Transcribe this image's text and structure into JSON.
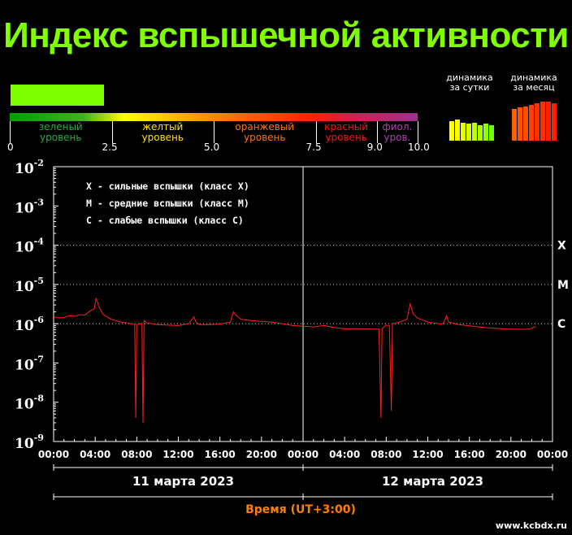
{
  "title": "Индекс вспышечной активности",
  "colors": {
    "title": "#80ff00",
    "indicator": "#80ff00",
    "curve": "#ff2020",
    "time_label": "#ff8000"
  },
  "scale": {
    "levels": [
      {
        "label": "зеленый\nуровень",
        "color": "#20b040"
      },
      {
        "label": "желтый\nуровень",
        "color": "#ffe000"
      },
      {
        "label": "оранжевый\nуровень",
        "color": "#ff7010"
      },
      {
        "label": "красный\nуровень",
        "color": "#ff1010"
      },
      {
        "label": "фиол.\nуров.",
        "color": "#b040b0"
      }
    ],
    "ticks": [
      "0",
      "2.5",
      "5.0",
      "7.5",
      "9.0",
      "10.0"
    ],
    "current_index": 2.3
  },
  "dynamics": {
    "day_label": "динамика\nза сутки",
    "month_label": "динамика\nза месяц",
    "day_colors": [
      "#ffff00",
      "#ffff00",
      "#e8ff00",
      "#d0ff00",
      "#c0ff00",
      "#a8ff00",
      "#90ff00",
      "#70ff00"
    ],
    "day_levels": [
      0.75,
      0.8,
      0.7,
      0.65,
      0.7,
      0.6,
      0.65,
      0.6
    ],
    "month_colors": [
      "#ff6000",
      "#ff5000",
      "#ff5000",
      "#ff4000",
      "#ff3000",
      "#ff3000",
      "#ff2000",
      "#ff2000"
    ],
    "month_levels": [
      0.82,
      0.86,
      0.88,
      0.92,
      0.96,
      1.0,
      1.0,
      0.95
    ]
  },
  "legend": [
    "X - сильные вспышки (класс X)",
    "M - средние вспышки (класс M)",
    "C - слабые вспышки (класс C)"
  ],
  "class_labels": [
    "X",
    "M",
    "C"
  ],
  "chart_data": {
    "type": "line",
    "y_scale": "log",
    "ylim": [
      1e-09,
      0.01
    ],
    "y_ticks": [
      {
        "base": "10",
        "exp": "-2"
      },
      {
        "base": "10",
        "exp": "-3"
      },
      {
        "base": "10",
        "exp": "-4"
      },
      {
        "base": "10",
        "exp": "-5"
      },
      {
        "base": "10",
        "exp": "-6"
      },
      {
        "base": "10",
        "exp": "-7"
      },
      {
        "base": "10",
        "exp": "-8"
      },
      {
        "base": "10",
        "exp": "-9"
      }
    ],
    "x_ticks": [
      "00:00",
      "04:00",
      "08:00",
      "12:00",
      "16:00",
      "20:00",
      "00:00",
      "04:00",
      "08:00",
      "12:00",
      "16:00",
      "20:00",
      "00:00"
    ],
    "xlim_hours": [
      0,
      48
    ],
    "class_levels": [
      0.0001,
      1e-05,
      1e-06
    ],
    "day_boundary_hour": 24,
    "series": [
      {
        "points": [
          [
            0.0,
            1.5e-06
          ],
          [
            0.5,
            1.4e-06
          ],
          [
            1.0,
            1.45e-06
          ],
          [
            1.5,
            1.6e-06
          ],
          [
            2.0,
            1.55e-06
          ],
          [
            2.5,
            1.7e-06
          ],
          [
            3.0,
            1.65e-06
          ],
          [
            3.5,
            2.1e-06
          ],
          [
            3.9,
            2.4e-06
          ],
          [
            4.1,
            4.5e-06
          ],
          [
            4.4,
            2.5e-06
          ],
          [
            4.8,
            1.7e-06
          ],
          [
            5.5,
            1.3e-06
          ],
          [
            6.5,
            1.1e-06
          ],
          [
            7.5,
            1e-06
          ],
          [
            7.8,
            9.5e-07
          ],
          [
            7.9,
            4e-09
          ],
          [
            8.0,
            9.5e-07
          ],
          [
            8.3,
            1e-06
          ],
          [
            8.5,
            1e-06
          ],
          [
            8.6,
            3e-09
          ],
          [
            8.7,
            1.2e-06
          ],
          [
            9.0,
            1.05e-06
          ],
          [
            10.0,
            9.5e-07
          ],
          [
            11.0,
            9.2e-07
          ],
          [
            12.0,
            9e-07
          ],
          [
            13.0,
            1e-06
          ],
          [
            13.5,
            1.5e-06
          ],
          [
            13.7,
            1.1e-06
          ],
          [
            14.0,
            9.5e-07
          ],
          [
            15.0,
            9.5e-07
          ],
          [
            16.0,
            9.8e-07
          ],
          [
            17.0,
            1.1e-06
          ],
          [
            17.3,
            2e-06
          ],
          [
            17.6,
            1.6e-06
          ],
          [
            18.0,
            1.3e-06
          ],
          [
            19.0,
            1.2e-06
          ],
          [
            20.0,
            1.15e-06
          ],
          [
            21.0,
            1.1e-06
          ],
          [
            22.0,
            1e-06
          ],
          [
            23.0,
            9e-07
          ],
          [
            24.0,
            8.6e-07
          ],
          [
            25.0,
            8.3e-07
          ],
          [
            26.0,
            9e-07
          ],
          [
            27.0,
            8e-07
          ],
          [
            28.0,
            7.4e-07
          ],
          [
            29.0,
            7.5e-07
          ],
          [
            30.0,
            7.4e-07
          ],
          [
            31.3,
            7.3e-07
          ],
          [
            31.5,
            4e-09
          ],
          [
            31.6,
            7.5e-07
          ],
          [
            32.0,
            9.2e-07
          ],
          [
            32.3,
            9e-07
          ],
          [
            32.5,
            6e-09
          ],
          [
            32.6,
            1e-06
          ],
          [
            33.0,
            1.05e-06
          ],
          [
            33.7,
            1.2e-06
          ],
          [
            34.0,
            1.3e-06
          ],
          [
            34.3,
            3.2e-06
          ],
          [
            34.6,
            1.8e-06
          ],
          [
            35.0,
            1.4e-06
          ],
          [
            36.0,
            1.1e-06
          ],
          [
            37.0,
            1e-06
          ],
          [
            37.5,
            1e-06
          ],
          [
            37.8,
            1.6e-06
          ],
          [
            38.0,
            1.1e-06
          ],
          [
            39.0,
            9.5e-07
          ],
          [
            40.0,
            8.8e-07
          ],
          [
            41.0,
            8.2e-07
          ],
          [
            42.0,
            7.8e-07
          ],
          [
            43.0,
            7.5e-07
          ],
          [
            44.0,
            7.3e-07
          ],
          [
            45.0,
            7.2e-07
          ],
          [
            45.8,
            7.3e-07
          ],
          [
            46.4,
            8.5e-07
          ]
        ]
      }
    ]
  },
  "dates": [
    "11 марта 2023",
    "12 марта 2023"
  ],
  "time_label": "Время (UT+3:00)",
  "site": "www.kcbdx.ru"
}
